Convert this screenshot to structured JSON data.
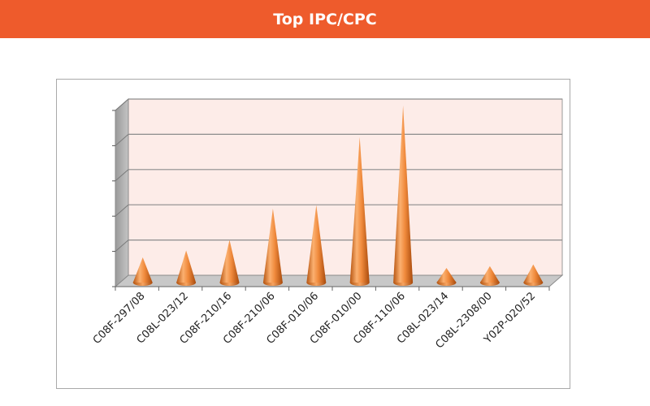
{
  "header": {
    "title": "Top IPC/CPC"
  },
  "colors": {
    "header": "#ee5b2c",
    "cone": "#f08a3c",
    "plot_back": "#fdece8",
    "floor": "#c8c8c8"
  },
  "chart_data": {
    "type": "bar",
    "style": "3d-cone",
    "title": "",
    "xlabel": "",
    "ylabel": "",
    "grid": true,
    "ylim": [
      0,
      5
    ],
    "y_tick_labels_shown": false,
    "categories": [
      "C08F-297/08",
      "C08L-023/12",
      "C08F-210/16",
      "C08F-210/06",
      "C08F-010/06",
      "C08F-010/00",
      "C08F-110/06",
      "C08L-023/14",
      "C08L-2308/00",
      "Y02P-020/52"
    ],
    "values": [
      0.65,
      0.85,
      1.15,
      2.05,
      2.15,
      4.1,
      5.0,
      0.35,
      0.4,
      0.45
    ]
  }
}
